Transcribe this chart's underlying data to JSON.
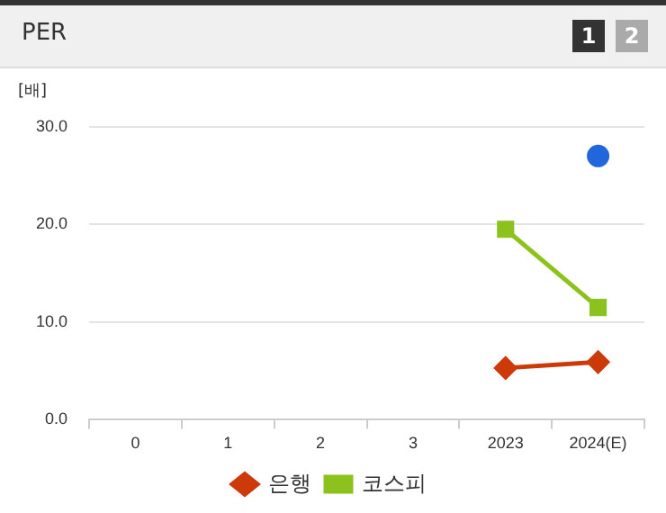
{
  "chart_data": {
    "type": "line",
    "title": "PER",
    "ylabel": "[배]",
    "annotations": [
      "1",
      "2"
    ],
    "categories": [
      "0",
      "1",
      "2",
      "3",
      "2023",
      "2024(E)"
    ],
    "series": [
      {
        "color": "#2266dd",
        "marker": "circle",
        "values": [
          null,
          null,
          null,
          null,
          null,
          27
        ]
      },
      {
        "name": "은행",
        "color": "#cc3a0a",
        "marker": "diamond",
        "values": [
          null,
          null,
          null,
          null,
          5.3,
          5.9
        ]
      },
      {
        "name": "코스피",
        "color": "#8cc21e",
        "marker": "square",
        "values": [
          null,
          null,
          null,
          null,
          19.5,
          11.5
        ]
      }
    ],
    "ylim": [
      0,
      30
    ],
    "yticks": [
      {
        "value": 0,
        "label": "0.0"
      },
      {
        "value": 10,
        "label": "10.0"
      },
      {
        "value": 20,
        "label": "20.0"
      },
      {
        "value": 30,
        "label": "30.0"
      }
    ],
    "grid": "y",
    "legend": "bottom"
  }
}
